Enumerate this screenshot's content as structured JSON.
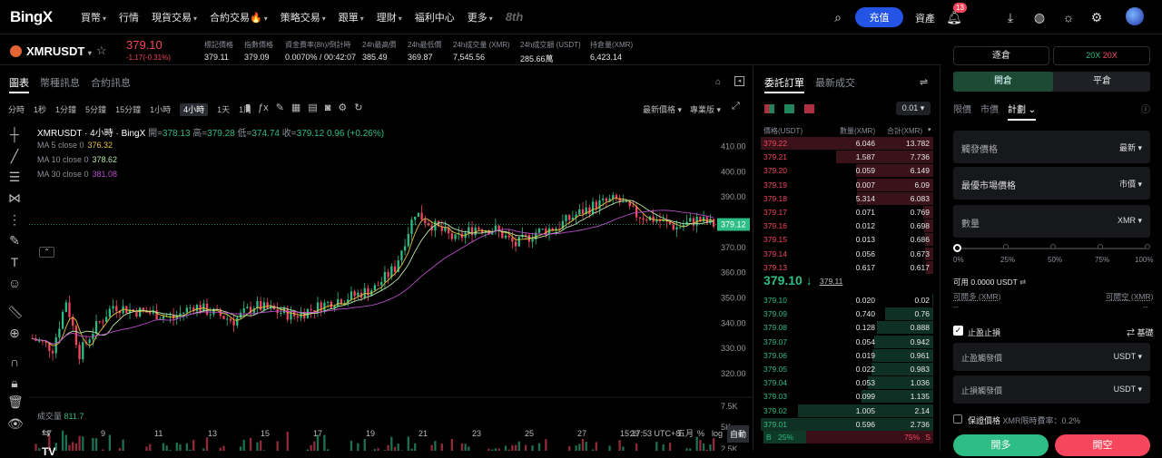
{
  "nav": {
    "logo": "BingX",
    "items": [
      {
        "label": "買幣",
        "caret": true
      },
      {
        "label": "行情",
        "caret": false
      },
      {
        "label": "現貨交易",
        "caret": true
      },
      {
        "label": "合約交易🔥",
        "caret": true
      },
      {
        "label": "策略交易",
        "caret": true
      },
      {
        "label": "跟單",
        "caret": true
      },
      {
        "label": "理財",
        "caret": true
      },
      {
        "label": "福利中心",
        "caret": false
      },
      {
        "label": "更多",
        "caret": true
      }
    ],
    "anniversary": "8th",
    "deposit": "充值",
    "assets": "資產",
    "notif_count": "13"
  },
  "ticker": {
    "symbol": "XMRUSDT",
    "price": "379.10",
    "change": "-1.17(-0.31%)",
    "stats": [
      {
        "label": "標記價格",
        "value": "379.11"
      },
      {
        "label": "指數價格",
        "value": "379.09"
      },
      {
        "label": "資金費率(8h)/倒計時",
        "value": "0.0070% / 00:42:07"
      },
      {
        "label": "24h最高價",
        "value": "385.49"
      },
      {
        "label": "24h最低價",
        "value": "369.87"
      },
      {
        "label": "24h成交量 (XMR)",
        "value": "7,545.56"
      },
      {
        "label": "24h成交額 (USDT)",
        "value": "285.66萬"
      },
      {
        "label": "持倉量(XMR)",
        "value": "6,423.14"
      }
    ]
  },
  "chart_tabs": [
    "圖表",
    "幣種訊息",
    "合約訊息"
  ],
  "timeframes": [
    "分時",
    "1秒",
    "1分鐘",
    "5分鐘",
    "15分鐘",
    "1小時",
    "4小時",
    "1天",
    "1周"
  ],
  "active_tf": "4小時",
  "chart_header": {
    "latest": "最新價格",
    "pro": "專業版"
  },
  "ohlc": {
    "title": "XMRUSDT · 4小時 · BingX",
    "o_label": "開=",
    "o": "378.13",
    "h_label": "高=",
    "h": "379.28",
    "l_label": "低=",
    "l": "374.74",
    "c_label": "收=",
    "c": "379.12",
    "chg": "0.96 (+0.26%)"
  },
  "ma": [
    {
      "label": "MA 5 close 0",
      "value": "376.32",
      "color": "#e8c23c"
    },
    {
      "label": "MA 10 close 0",
      "value": "378.62",
      "color": "#b6e6a8"
    },
    {
      "label": "MA 30 close 0",
      "value": "381.08",
      "color": "#b84fc8"
    }
  ],
  "volume": {
    "label": "成交量",
    "value": "811.7"
  },
  "axis": {
    "price_ticks": [
      "410.00",
      "400.00",
      "390.00",
      "380.00",
      "370.00",
      "360.00",
      "350.00",
      "340.00",
      "330.00",
      "320.00"
    ],
    "vol_ticks": [
      "7.5K",
      "5K",
      "2.5K"
    ],
    "dates": [
      "7",
      "9",
      "11",
      "13",
      "15",
      "17",
      "19",
      "21",
      "23",
      "25",
      "27",
      "29",
      "五月"
    ],
    "last_price": "379.12"
  },
  "chart_footer": {
    "time": "15:17:53 UTC+8",
    "pct": "%",
    "log": "log",
    "auto": "自動"
  },
  "chart_data": {
    "type": "candlestick",
    "x_label": "",
    "y_label": "",
    "price_range": [
      315,
      412
    ],
    "series": [
      {
        "name": "MA 5 close 0",
        "color": "#e8c23c"
      },
      {
        "name": "MA 10 close 0",
        "color": "#b6e6a8"
      },
      {
        "name": "MA 30 close 0",
        "color": "#b84fc8"
      }
    ],
    "anchors": [
      [
        0,
        334
      ],
      [
        6,
        330
      ],
      [
        10,
        349
      ],
      [
        14,
        328
      ],
      [
        18,
        337
      ],
      [
        24,
        347
      ],
      [
        30,
        345
      ],
      [
        36,
        344
      ],
      [
        42,
        342
      ],
      [
        48,
        347
      ],
      [
        54,
        344
      ],
      [
        60,
        341
      ],
      [
        66,
        347
      ],
      [
        72,
        345
      ],
      [
        78,
        343
      ],
      [
        84,
        346
      ],
      [
        90,
        349
      ],
      [
        96,
        351
      ],
      [
        102,
        354
      ],
      [
        108,
        362
      ],
      [
        111,
        373
      ],
      [
        114,
        384
      ],
      [
        118,
        380
      ],
      [
        126,
        373
      ],
      [
        132,
        378
      ],
      [
        138,
        377
      ],
      [
        144,
        371
      ],
      [
        150,
        376
      ],
      [
        156,
        378
      ],
      [
        162,
        383
      ],
      [
        168,
        387
      ],
      [
        174,
        389
      ],
      [
        180,
        383
      ],
      [
        186,
        381
      ],
      [
        192,
        378
      ],
      [
        198,
        381
      ],
      [
        203,
        379
      ]
    ]
  },
  "orderbook": {
    "tabs": [
      "委託訂單",
      "最新成交"
    ],
    "precision": "0.01",
    "headers": [
      "價格(USDT)",
      "數量(XMR)",
      "合計(XMR)"
    ],
    "asks": [
      [
        "379.22",
        "6.046",
        "13.782"
      ],
      [
        "379.21",
        "1.587",
        "7.736"
      ],
      [
        "379.20",
        "0.059",
        "6.149"
      ],
      [
        "379.19",
        "0.007",
        "6.09"
      ],
      [
        "379.18",
        "5.314",
        "6.083"
      ],
      [
        "379.17",
        "0.071",
        "0.769"
      ],
      [
        "379.16",
        "0.012",
        "0.698"
      ],
      [
        "379.15",
        "0.013",
        "0.686"
      ],
      [
        "379.14",
        "0.056",
        "0.673"
      ],
      [
        "379.13",
        "0.617",
        "0.617"
      ]
    ],
    "mid": "379.10",
    "mid_mark": "379.11",
    "bids": [
      [
        "379.10",
        "0.020",
        "0.02"
      ],
      [
        "379.09",
        "0.740",
        "0.76"
      ],
      [
        "379.08",
        "0.128",
        "0.888"
      ],
      [
        "379.07",
        "0.054",
        "0.942"
      ],
      [
        "379.06",
        "0.019",
        "0.961"
      ],
      [
        "379.05",
        "0.022",
        "0.983"
      ],
      [
        "379.04",
        "0.053",
        "1.036"
      ],
      [
        "379.03",
        "0.099",
        "1.135"
      ],
      [
        "379.02",
        "1.005",
        "2.14"
      ],
      [
        "379.01",
        "0.596",
        "2.736"
      ]
    ],
    "buy_pct": "25%",
    "sell_pct": "75%",
    "b": "B",
    "s": "S"
  },
  "trade": {
    "margin_mode": "逐倉",
    "lev_long": "20X",
    "lev_short": "20X",
    "open": "開倉",
    "close": "平倉",
    "order_types": [
      "限價",
      "市價",
      "計劃"
    ],
    "active_type": "計劃",
    "trigger": {
      "label": "觸發價格",
      "value": "最新"
    },
    "exec": {
      "label": "最優市場價格",
      "value": "市價"
    },
    "qty": {
      "label": "數量",
      "unit": "XMR"
    },
    "slider": [
      "0%",
      "25%",
      "50%",
      "75%",
      "100%"
    ],
    "available": "可用 0.0000 USDT",
    "long_label": "可開多 (XMR)",
    "short_label": "可開空 (XMR)",
    "long_val": "--",
    "short_val": "--",
    "tpsl": "止盈止損",
    "basic": "基礎",
    "tp": {
      "label": "止盈觸發價",
      "unit": "USDT"
    },
    "sl": {
      "label": "止損觸發價",
      "unit": "USDT"
    },
    "guarantee": "保證價格",
    "fee": "XMR限時費率：0.2%",
    "buy": "開多",
    "sell": "開空"
  }
}
